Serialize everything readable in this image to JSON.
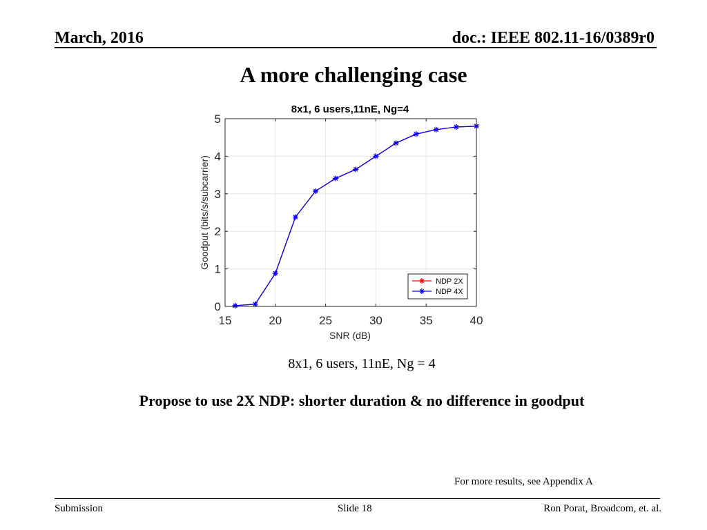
{
  "header": {
    "date": "March, 2016",
    "doc": "doc.: IEEE 802.11-16/0389r0"
  },
  "slide": {
    "title": "A more challenging case",
    "caption": "8x1, 6 users, 11nE, Ng = 4",
    "proposal": "Propose to use 2X NDP: shorter duration & no difference in goodput",
    "note": "For more results, see Appendix A"
  },
  "footer": {
    "left": "Submission",
    "center": "Slide 18",
    "right": "Ron Porat, Broadcom, et. al."
  },
  "colors": {
    "ndp2x": "#ff0000",
    "ndp4x": "#0000ff",
    "grid": "#e6e6e6",
    "axis": "#262626"
  },
  "chart_data": {
    "type": "line",
    "title": "8x1, 6 users,11nE, Ng=4",
    "xlabel": "SNR (dB)",
    "ylabel": "Goodput (bits/s/subcarrier)",
    "xlim": [
      15,
      40
    ],
    "ylim": [
      0,
      5
    ],
    "xticks": [
      15,
      20,
      25,
      30,
      35,
      40
    ],
    "yticks": [
      0,
      1,
      2,
      3,
      4,
      5
    ],
    "grid": true,
    "legend_position": "bottom-right",
    "x": [
      16,
      18,
      20,
      22,
      24,
      26,
      28,
      30,
      32,
      34,
      36,
      38,
      40
    ],
    "series": [
      {
        "name": "NDP 2X",
        "marker": "*",
        "values": [
          0.02,
          0.06,
          0.88,
          2.38,
          3.07,
          3.41,
          3.65,
          4.0,
          4.35,
          4.59,
          4.71,
          4.78,
          4.8
        ]
      },
      {
        "name": "NDP 4X",
        "marker": "*",
        "values": [
          0.02,
          0.06,
          0.88,
          2.38,
          3.07,
          3.41,
          3.65,
          4.0,
          4.35,
          4.59,
          4.71,
          4.78,
          4.8
        ]
      }
    ]
  }
}
